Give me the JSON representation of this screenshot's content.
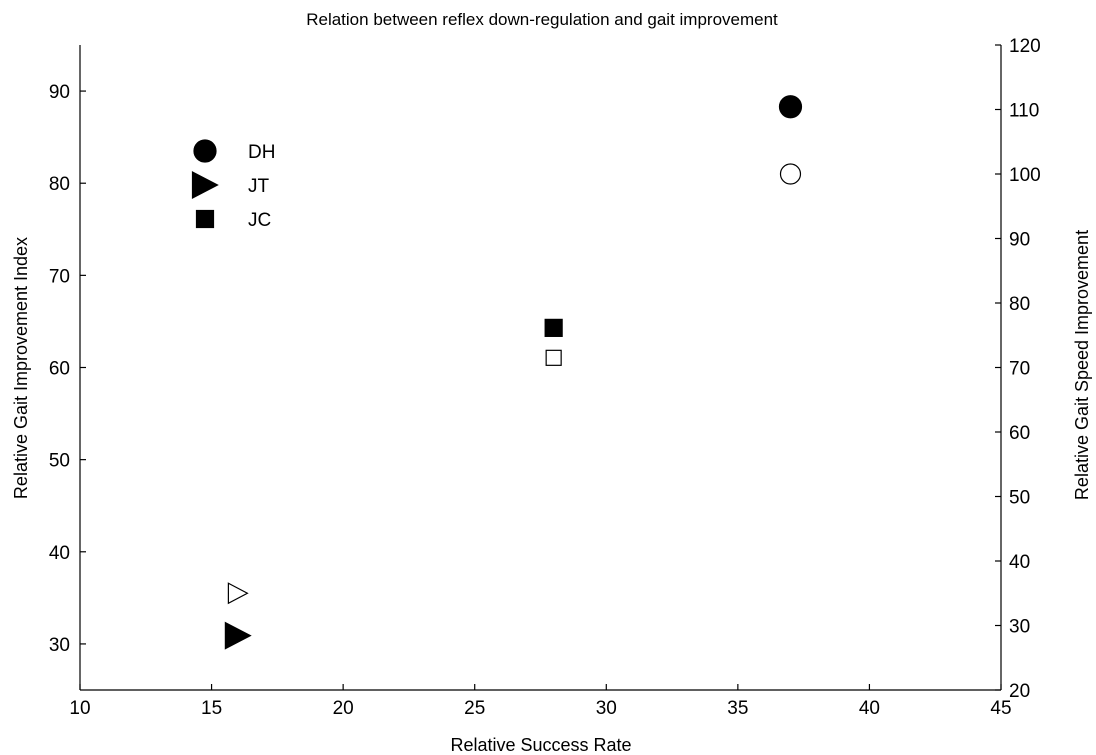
{
  "chart_data": {
    "type": "scatter",
    "title": "Relation between reflex down-regulation and gait improvement",
    "xlabel": "Relative Success Rate",
    "ylabel": "Relative Gait Improvement Index",
    "y2label": "Relative Gait Speed Improvement",
    "xlim": [
      10,
      45
    ],
    "ylim": [
      25,
      95
    ],
    "y2lim": [
      20,
      120
    ],
    "xticks": [
      "10",
      "15",
      "20",
      "25",
      "30",
      "35",
      "40",
      "45"
    ],
    "yticks": [
      "30",
      "40",
      "50",
      "60",
      "70",
      "80",
      "90"
    ],
    "y2ticks": [
      "20",
      "30",
      "40",
      "50",
      "60",
      "70",
      "80",
      "90",
      "100",
      "110",
      "120"
    ],
    "grid": false,
    "legend_position": "top-left",
    "legend": [
      {
        "label": "DH",
        "marker": "circle"
      },
      {
        "label": "JT",
        "marker": "triangle-right"
      },
      {
        "label": "JC",
        "marker": "square"
      }
    ],
    "series": [
      {
        "name": "DH",
        "marker": "circle",
        "points": [
          {
            "x": 37,
            "y": 88.3,
            "axis": "left",
            "filled": true
          },
          {
            "x": 37,
            "y": 100,
            "axis": "right",
            "filled": false
          }
        ]
      },
      {
        "name": "JT",
        "marker": "triangle-right",
        "points": [
          {
            "x": 16,
            "y": 30.9,
            "axis": "left",
            "filled": true
          },
          {
            "x": 16,
            "y": 35,
            "axis": "right",
            "filled": false
          }
        ]
      },
      {
        "name": "JC",
        "marker": "square",
        "points": [
          {
            "x": 28,
            "y": 64.3,
            "axis": "left",
            "filled": true
          },
          {
            "x": 28,
            "y": 71.5,
            "axis": "right",
            "filled": false
          }
        ]
      }
    ],
    "colors": {
      "marker": "#000000",
      "hollow_fill": "#ffffff"
    }
  }
}
